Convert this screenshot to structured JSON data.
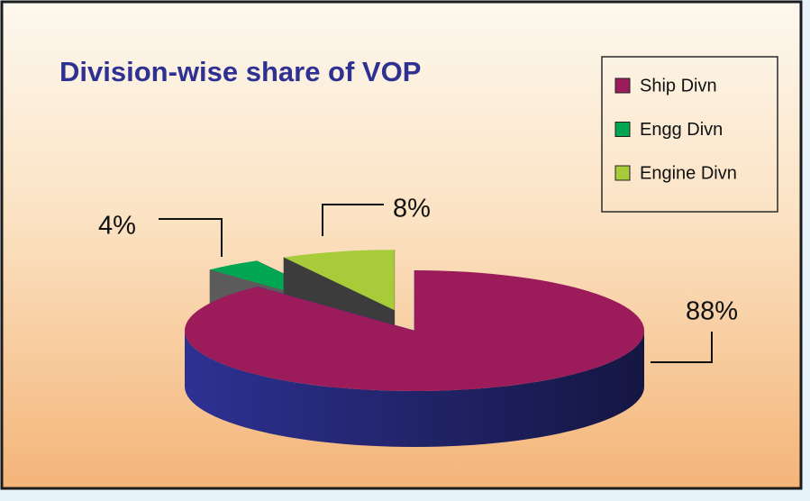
{
  "chart_data": {
    "type": "pie",
    "title": "Division-wise share of VOP",
    "categories": [
      "Ship Divn",
      "Engg Divn",
      "Engine Divn"
    ],
    "values": [
      88,
      4,
      8
    ],
    "value_labels": [
      "88%",
      "4%",
      "8%"
    ],
    "colors": [
      "#9b1b5b",
      "#00a651",
      "#a8cb3a"
    ],
    "side_colors": [
      "#2e3192",
      "#5b5b5b",
      "#3c3c3c"
    ],
    "legend": "top-right"
  }
}
